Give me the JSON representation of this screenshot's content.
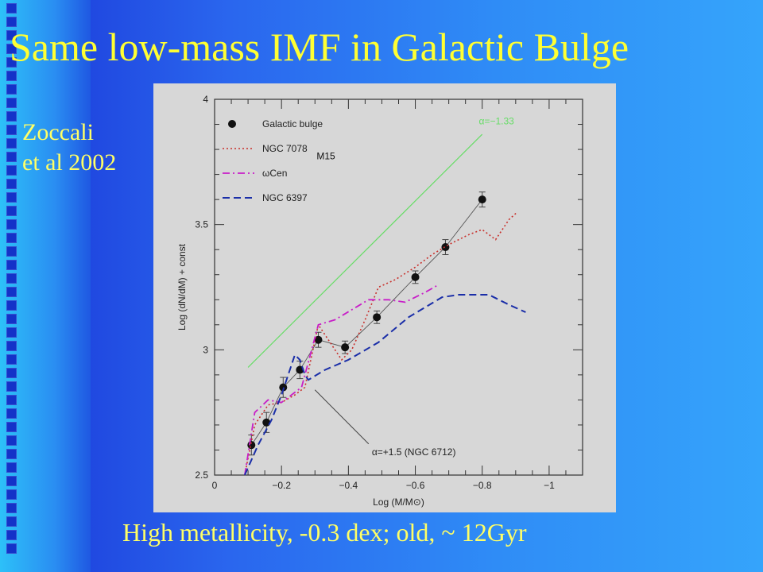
{
  "slide": {
    "title": "Same low-mass IMF in Galactic Bulge",
    "author_line1": "Zoccali",
    "author_line2": "et al 2002",
    "footer": "High metallicity, -0.3 dex; old, ~ 12Gyr"
  },
  "colors": {
    "title": "#ffff33",
    "bulge": "#111111",
    "ngc7078": "#c8302c",
    "omega_cen": "#c81ec8",
    "ngc6397": "#1a2ea8",
    "slope_line": "#66dd66"
  },
  "chart_data": {
    "type": "line",
    "xlabel": "Log (M/M⊙)",
    "ylabel": "Log (dN/dM) + const",
    "xlim": [
      0,
      -1.1
    ],
    "ylim": [
      2.5,
      4.0
    ],
    "x_ticks": [
      0,
      -0.2,
      -0.4,
      -0.6,
      -0.8,
      -1
    ],
    "x_tick_labels": [
      "0",
      "−0.2",
      "−0.4",
      "−0.6",
      "−0.8",
      "−1"
    ],
    "y_ticks": [
      2.5,
      3,
      3.5,
      4
    ],
    "y_tick_labels": [
      "2.5",
      "3",
      "3.5",
      "4"
    ],
    "legend": [
      {
        "key": "bulge",
        "label": "Galactic bulge"
      },
      {
        "key": "ngc7078",
        "label": "NGC 7078"
      },
      {
        "key": "omega_cen",
        "label": "ωCen"
      },
      {
        "key": "ngc6397",
        "label": "NGC 6397"
      }
    ],
    "legend_placement": "top-left",
    "series": [
      {
        "key": "bulge",
        "name": "Galactic bulge",
        "style": "points-line",
        "x": [
          -0.11,
          -0.155,
          -0.205,
          -0.255,
          -0.31,
          -0.39,
          -0.485,
          -0.6,
          -0.69,
          -0.8
        ],
        "y": [
          2.62,
          2.71,
          2.85,
          2.92,
          3.04,
          3.01,
          3.13,
          3.29,
          3.41,
          3.6
        ],
        "err": [
          0.04,
          0.04,
          0.04,
          0.035,
          0.03,
          0.025,
          0.025,
          0.025,
          0.03,
          0.03
        ]
      },
      {
        "key": "ngc7078",
        "name": "NGC 7078",
        "style": "dotted",
        "x": [
          -0.09,
          -0.12,
          -0.16,
          -0.2,
          -0.24,
          -0.27,
          -0.31,
          -0.35,
          -0.38,
          -0.41,
          -0.45,
          -0.49,
          -0.54,
          -0.6,
          -0.65,
          -0.7,
          -0.76,
          -0.8,
          -0.84,
          -0.88,
          -0.905
        ],
        "y": [
          2.5,
          2.7,
          2.78,
          2.79,
          2.82,
          2.85,
          3.1,
          3.02,
          2.96,
          3.0,
          3.12,
          3.25,
          3.28,
          3.33,
          3.38,
          3.42,
          3.46,
          3.48,
          3.44,
          3.52,
          3.55
        ]
      },
      {
        "key": "omega_cen",
        "name": "ωCen",
        "style": "dash-dot",
        "x": [
          -0.09,
          -0.12,
          -0.16,
          -0.2,
          -0.24,
          -0.26,
          -0.28,
          -0.31,
          -0.36,
          -0.41,
          -0.46,
          -0.52,
          -0.57,
          -0.63,
          -0.67
        ],
        "y": [
          2.5,
          2.75,
          2.8,
          2.79,
          2.83,
          2.85,
          2.95,
          3.1,
          3.12,
          3.16,
          3.2,
          3.2,
          3.19,
          3.23,
          3.26
        ]
      },
      {
        "key": "ngc6397",
        "name": "NGC 6397",
        "style": "dashed",
        "x": [
          -0.09,
          -0.13,
          -0.17,
          -0.2,
          -0.24,
          -0.255,
          -0.27,
          -0.28,
          -0.33,
          -0.4,
          -0.49,
          -0.58,
          -0.68,
          -0.73,
          -0.82,
          -0.88,
          -0.93
        ],
        "y": [
          2.5,
          2.62,
          2.72,
          2.82,
          2.98,
          2.96,
          2.9,
          2.88,
          2.92,
          2.96,
          3.03,
          3.13,
          3.21,
          3.22,
          3.22,
          3.18,
          3.15
        ]
      },
      {
        "key": "slope",
        "name": "α=−1.33",
        "style": "solid",
        "x": [
          -0.1,
          -0.8
        ],
        "y": [
          2.93,
          3.86
        ]
      }
    ],
    "annotations": [
      {
        "text": "α=−1.33",
        "x": -0.79,
        "y": 3.9
      },
      {
        "text": "M15",
        "x": -0.305,
        "y": 3.76
      },
      {
        "text": "α=+1.5 (NGC 6712)",
        "x": -0.47,
        "y": 2.58,
        "pointer_to": [
          -0.3,
          2.84
        ]
      }
    ]
  }
}
